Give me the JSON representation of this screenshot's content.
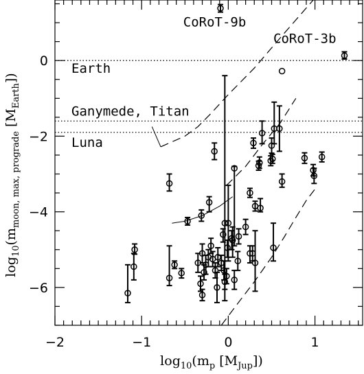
{
  "chart_data": {
    "type": "scatter",
    "title": "",
    "xlabel": "log10(mp [MJup])",
    "ylabel": "log10(mmoon, max, prograde [MEarth])",
    "xlabel_parts": {
      "pre": "log",
      "sub1": "10",
      "mid": "(m",
      "sub2": "p",
      "mid2": " [M",
      "sub3": "Jup",
      "post": "])"
    },
    "ylabel_parts": {
      "pre": "log",
      "sub1": "10",
      "mid": "(m",
      "sub2": "moon, max, prograde",
      "mid2": " [M",
      "sub3": "Earth",
      "post": "])"
    },
    "xlim": [
      -2,
      1.55
    ],
    "ylim": [
      -7,
      1.6
    ],
    "xticks": [
      -2,
      -1,
      0,
      1
    ],
    "xtick_labels": [
      "−2",
      "−1",
      "0",
      "1"
    ],
    "yticks": [
      -6,
      -4,
      -2,
      0
    ],
    "ytick_labels": [
      "−6",
      "−4",
      "−2",
      "0"
    ],
    "grid": false,
    "legend": "none",
    "hlines": [
      {
        "y": 0,
        "label": "Earth",
        "style": "dotted"
      },
      {
        "y": -1.6,
        "label": "Ganymede, Titan",
        "style": "dotted"
      },
      {
        "y": -1.9,
        "label": "Luna",
        "style": "dotted"
      }
    ],
    "annotations": [
      {
        "text": "CoRoT-9b",
        "x": -0.52,
        "y": 0.9
      },
      {
        "text": "CoRoT-3b",
        "x": 0.52,
        "y": 0.47
      }
    ],
    "dashed_curves": [
      [
        [
          -0.78,
          -2.28
        ],
        [
          -0.65,
          -2.15
        ],
        [
          -0.5,
          -2.0
        ],
        [
          -0.35,
          -1.75
        ],
        [
          -0.2,
          -1.4
        ],
        [
          0,
          -0.9
        ],
        [
          0.3,
          -0.2
        ],
        [
          0.6,
          0.6
        ],
        [
          0.98,
          1.6
        ]
      ],
      [
        [
          -0.02,
          -3.3
        ],
        [
          0.2,
          -2.8
        ],
        [
          0.4,
          -2.2
        ],
        [
          0.6,
          -1.65
        ],
        [
          0.78,
          -1.0
        ]
      ],
      [
        [
          -0.08,
          -7.0
        ],
        [
          0.1,
          -6.45
        ],
        [
          0.3,
          -5.85
        ],
        [
          0.5,
          -5.2
        ],
        [
          0.65,
          -4.65
        ],
        [
          0.78,
          -4.15
        ],
        [
          0.9,
          -3.7
        ],
        [
          1.0,
          -3.4
        ]
      ]
    ],
    "solid_curves": [
      [
        [
          -0.88,
          -1.75
        ],
        [
          -0.78,
          -2.28
        ]
      ],
      [
        [
          -0.65,
          -4.3
        ],
        [
          -0.5,
          -4.25
        ],
        [
          -0.3,
          -4.1
        ],
        [
          -0.1,
          -3.85
        ],
        [
          0.05,
          -3.6
        ]
      ]
    ],
    "points": [
      {
        "x": -0.09,
        "y": 1.38,
        "lo": 1.28,
        "hi": 1.48
      },
      {
        "x": 1.34,
        "y": 0.13,
        "lo": 0.04,
        "hi": 0.23
      },
      {
        "x": 0.62,
        "y": -0.28,
        "lo": -0.28,
        "hi": -0.28
      },
      {
        "x": 0.53,
        "y": -1.8,
        "lo": -2.2,
        "hi": -1.1
      },
      {
        "x": 0.59,
        "y": -1.8,
        "lo": -2.4,
        "hi": -1.2
      },
      {
        "x": 0.39,
        "y": -1.92,
        "lo": -2.2,
        "hi": -1.6
      },
      {
        "x": 0.5,
        "y": -2.25,
        "lo": -2.45,
        "hi": -2.05
      },
      {
        "x": 0.29,
        "y": -2.18,
        "lo": -2.32,
        "hi": -2.05
      },
      {
        "x": -0.16,
        "y": -2.4,
        "lo": -2.62,
        "hi": -2.18
      },
      {
        "x": 0.36,
        "y": -2.7,
        "lo": -2.85,
        "hi": -2.55
      },
      {
        "x": 0.51,
        "y": -2.6,
        "lo": -2.72,
        "hi": -2.48
      },
      {
        "x": 0.35,
        "y": -2.78,
        "lo": -2.9,
        "hi": -2.66
      },
      {
        "x": 0.49,
        "y": -2.65,
        "lo": -2.78,
        "hi": -2.52
      },
      {
        "x": 0.88,
        "y": -2.58,
        "lo": -2.72,
        "hi": -2.44
      },
      {
        "x": 1.08,
        "y": -2.55,
        "lo": -2.68,
        "hi": -2.42
      },
      {
        "x": 0.98,
        "y": -2.9,
        "lo": -3.05,
        "hi": -2.75
      },
      {
        "x": 0.99,
        "y": -3.05,
        "lo": -3.25,
        "hi": -2.85
      },
      {
        "x": 0.62,
        "y": -3.2,
        "lo": -3.35,
        "hi": -3.0
      },
      {
        "x": -0.68,
        "y": -3.25,
        "lo": -3.45,
        "hi": -3.0
      },
      {
        "x": 0.25,
        "y": -3.5,
        "lo": -3.62,
        "hi": -3.38
      },
      {
        "x": 0.31,
        "y": -3.85,
        "lo": -3.98,
        "hi": -3.72
      },
      {
        "x": 0.37,
        "y": -3.9,
        "lo": -4.0,
        "hi": -3.65
      },
      {
        "x": 0.07,
        "y": -2.85,
        "lo": -4.9,
        "hi": -2.8
      },
      {
        "x": -0.22,
        "y": -3.75,
        "lo": -4.0,
        "hi": -3.6
      },
      {
        "x": -0.47,
        "y": -4.25,
        "lo": -4.35,
        "hi": -4.15
      },
      {
        "x": -0.31,
        "y": -4.1,
        "lo": -4.25,
        "hi": -3.95
      },
      {
        "x": -0.04,
        "y": -4.3,
        "lo": -6.35,
        "hi": -0.4
      },
      {
        "x": 0.0,
        "y": -4.3,
        "lo": -5.3,
        "hi": -3.3
      },
      {
        "x": 0.05,
        "y": -4.75,
        "lo": -5.2,
        "hi": -4.4
      },
      {
        "x": -0.06,
        "y": -4.6,
        "lo": -4.8,
        "hi": -4.45
      },
      {
        "x": -0.2,
        "y": -4.9,
        "lo": -5.1,
        "hi": -4.7
      },
      {
        "x": -0.01,
        "y": -4.95,
        "lo": -5.2,
        "hi": -4.75
      },
      {
        "x": 0.04,
        "y": -4.7,
        "lo": -5.0,
        "hi": -4.5
      },
      {
        "x": 0.2,
        "y": -4.4,
        "lo": -4.6,
        "hi": -4.2
      },
      {
        "x": 0.12,
        "y": -4.65,
        "lo": -4.85,
        "hi": -4.45
      },
      {
        "x": 0.11,
        "y": -5.3,
        "lo": -5.55,
        "hi": -5.05
      },
      {
        "x": 0.25,
        "y": -5.1,
        "lo": -5.35,
        "hi": -4.9
      },
      {
        "x": 0.28,
        "y": -5.1,
        "lo": -5.3,
        "hi": -4.9
      },
      {
        "x": 0.31,
        "y": -5.35,
        "lo": -6.1,
        "hi": -4.5
      },
      {
        "x": 0.52,
        "y": -4.95,
        "lo": -5.3,
        "hi": -4.3
      },
      {
        "x": -0.23,
        "y": -5.2,
        "lo": -5.45,
        "hi": -5.0
      },
      {
        "x": -0.26,
        "y": -5.4,
        "lo": -5.65,
        "hi": -5.15
      },
      {
        "x": -0.3,
        "y": -5.1,
        "lo": -5.35,
        "hi": -4.85
      },
      {
        "x": -0.35,
        "y": -5.35,
        "lo": -5.6,
        "hi": -5.1
      },
      {
        "x": -0.28,
        "y": -5.6,
        "lo": -5.8,
        "hi": -5.4
      },
      {
        "x": -0.18,
        "y": -5.25,
        "lo": -5.45,
        "hi": -5.05
      },
      {
        "x": -0.15,
        "y": -5.55,
        "lo": -5.75,
        "hi": -5.35
      },
      {
        "x": -0.12,
        "y": -5.2,
        "lo": -5.45,
        "hi": -4.95
      },
      {
        "x": -0.08,
        "y": -5.35,
        "lo": -5.55,
        "hi": -5.15
      },
      {
        "x": -0.05,
        "y": -5.55,
        "lo": -5.8,
        "hi": -5.3
      },
      {
        "x": -0.02,
        "y": -5.7,
        "lo": -5.9,
        "hi": -5.5
      },
      {
        "x": -0.04,
        "y": -5.85,
        "lo": -6.05,
        "hi": -5.65
      },
      {
        "x": 0.07,
        "y": -5.8,
        "lo": -6.05,
        "hi": -5.55
      },
      {
        "x": -0.32,
        "y": -5.9,
        "lo": -6.1,
        "hi": -5.7
      },
      {
        "x": -0.3,
        "y": -6.2,
        "lo": -6.35,
        "hi": -6.05
      },
      {
        "x": -0.13,
        "y": -6.0,
        "lo": -6.4,
        "hi": -5.6
      },
      {
        "x": -0.68,
        "y": -5.75,
        "lo": -5.95,
        "hi": -4.9
      },
      {
        "x": -0.62,
        "y": -5.4,
        "lo": -5.5,
        "hi": -5.3
      },
      {
        "x": -0.54,
        "y": -5.62,
        "lo": -5.75,
        "hi": -5.5
      },
      {
        "x": -1.08,
        "y": -5.0,
        "lo": -5.12,
        "hi": -4.85
      },
      {
        "x": -1.09,
        "y": -5.45,
        "lo": -5.8,
        "hi": -5.1
      },
      {
        "x": -1.16,
        "y": -6.15,
        "lo": -6.4,
        "hi": -5.4
      }
    ]
  }
}
